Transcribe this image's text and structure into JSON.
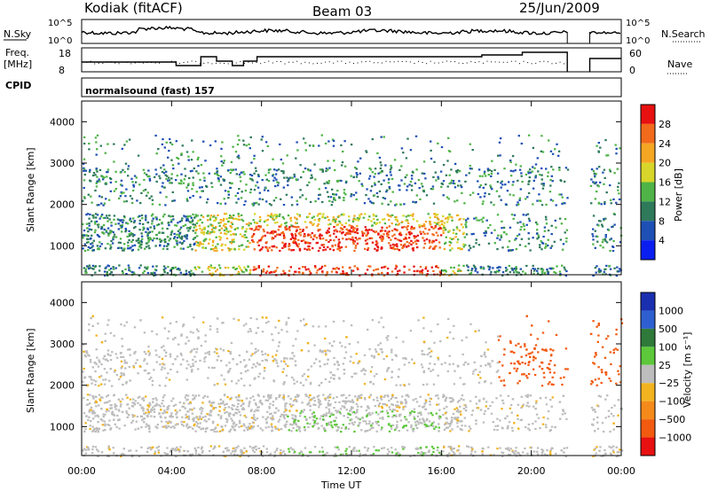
{
  "header": {
    "station": "Kodiak (fitACF)",
    "beam": "Beam 03",
    "date": "25/Jun/2009"
  },
  "aux_panels": {
    "nsky_label": "N.Sky",
    "nsearch_label": "N.Search",
    "freq_label_line1": "Freq.",
    "freq_label_line2": "[MHz]",
    "nave_label": "Nave",
    "cpid_label": "CPID",
    "cpid_value": "normalsound (fast) 157",
    "noise_ticks_left": [
      "10^5",
      "10^0"
    ],
    "noise_ticks_right": [
      "10^5",
      "10^0"
    ],
    "freq_ticks_left": [
      "18",
      "8"
    ],
    "nave_ticks_right": [
      "60",
      "0"
    ]
  },
  "chart_data": [
    {
      "type": "heatmap",
      "name": "power",
      "ylabel": "Slant Range [km]",
      "y_ticks": [
        "1000",
        "2000",
        "3000",
        "4000"
      ],
      "ylim": [
        300,
        4500
      ],
      "xlim_hours": [
        0,
        24
      ],
      "colorbar_title": "Power [dB]",
      "colorbar_ticks": [
        "4",
        "8",
        "12",
        "16",
        "20",
        "24",
        "28"
      ],
      "colorbar_colors": [
        "#0a1ef0",
        "#1e4fb4",
        "#2e7a5a",
        "#4fb447",
        "#d8d62a",
        "#f5a623",
        "#f26a1b",
        "#e81010"
      ],
      "data_gap_hours": [
        21.6,
        22.6
      ]
    },
    {
      "type": "heatmap",
      "name": "velocity",
      "ylabel": "Slant Range [km]",
      "y_ticks": [
        "1000",
        "2000",
        "3000",
        "4000"
      ],
      "ylim": [
        300,
        4500
      ],
      "xlim_hours": [
        0,
        24
      ],
      "colorbar_title": "Velocity  [m s⁻¹]",
      "colorbar_ticks": [
        "1000",
        "500",
        "100",
        "25",
        "−25",
        "−100",
        "−500",
        "−1000"
      ],
      "colorbar_colors": [
        "#1a2fb0",
        "#2e5fd0",
        "#2f7a3a",
        "#5cc83a",
        "#bdbdbd",
        "#f2b320",
        "#f58a1a",
        "#f25a10",
        "#e81010"
      ],
      "data_gap_hours": [
        21.6,
        22.6
      ]
    }
  ],
  "time_axis": {
    "ticks": [
      "00:00",
      "04:00",
      "08:00",
      "12:00",
      "16:00",
      "20:00",
      "00:00"
    ],
    "label": "Time UT"
  }
}
